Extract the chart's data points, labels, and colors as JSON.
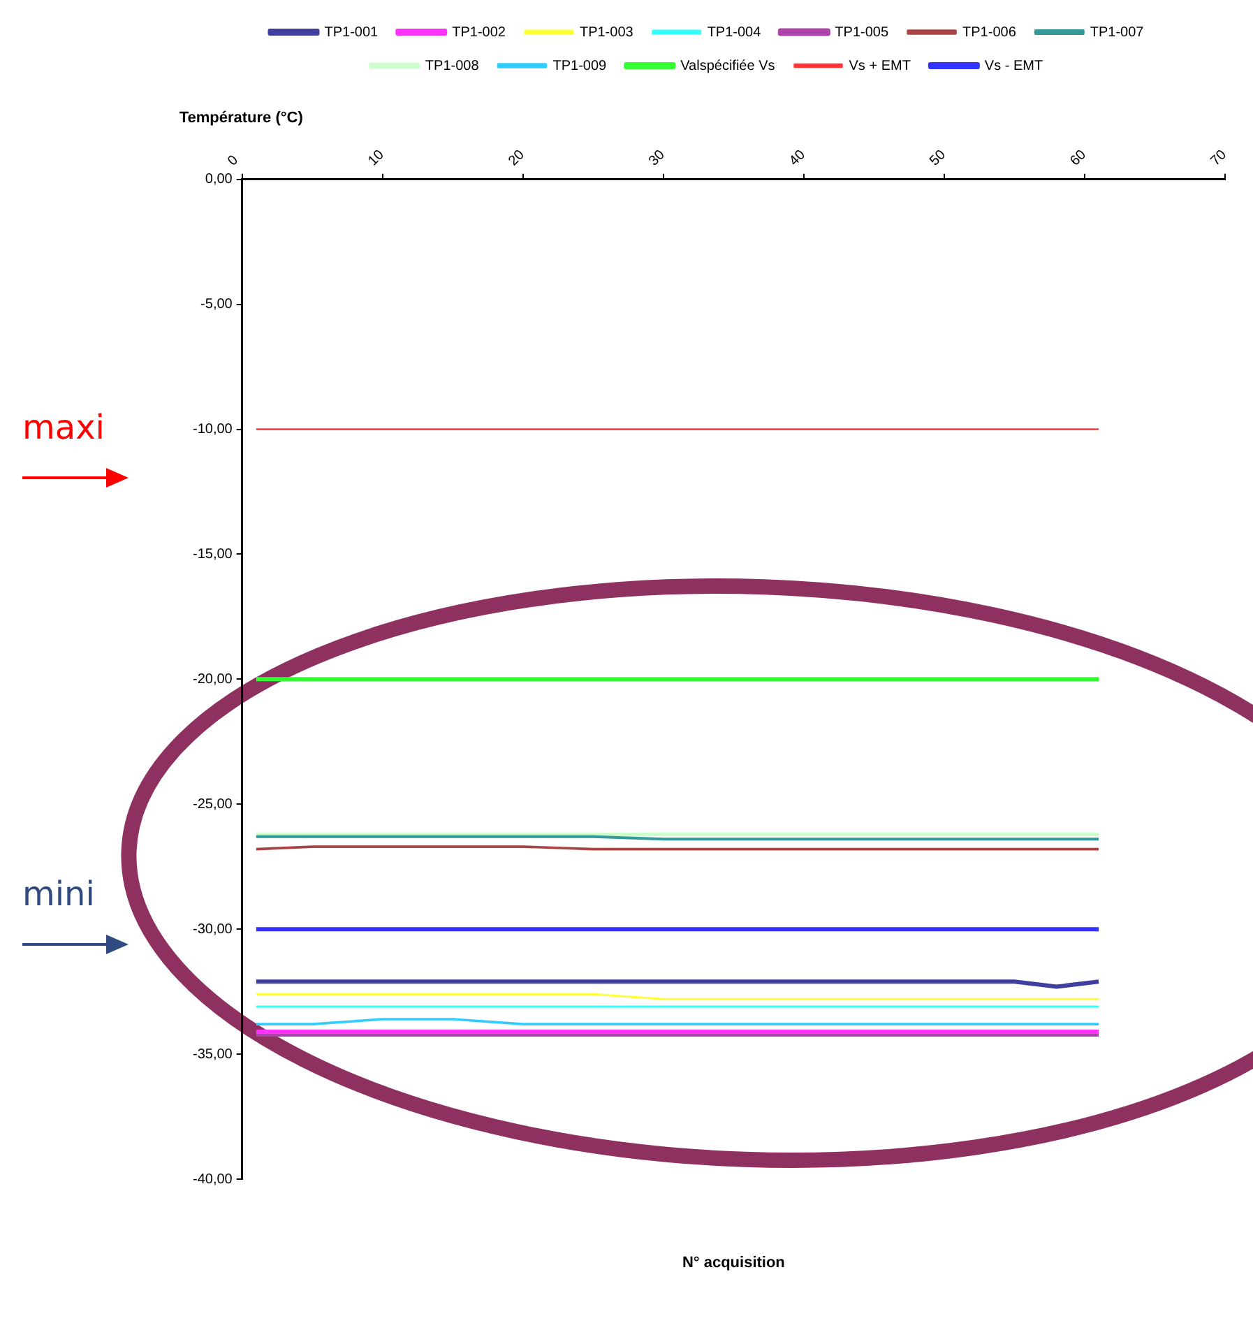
{
  "chart_data": {
    "type": "line",
    "ylabel": "Température (°C)",
    "xlabel": "N° acquisition",
    "x": [
      1,
      5,
      10,
      15,
      20,
      25,
      30,
      35,
      40,
      45,
      50,
      55,
      58,
      61
    ],
    "series": [
      {
        "name": "TP1-001",
        "color": "#3f3f9f",
        "values": [
          -32.1,
          -32.1,
          -32.1,
          -32.1,
          -32.1,
          -32.1,
          -32.1,
          -32.1,
          -32.1,
          -32.1,
          -32.1,
          -32.1,
          -32.3,
          -32.1
        ]
      },
      {
        "name": "TP1-002",
        "color": "#ff33ff",
        "values": [
          -34.1,
          -34.1,
          -34.1,
          -34.1,
          -34.1,
          -34.1,
          -34.1,
          -34.1,
          -34.1,
          -34.1,
          -34.1,
          -34.1,
          -34.1,
          -34.1
        ]
      },
      {
        "name": "TP1-003",
        "color": "#ffff33",
        "values": [
          -32.6,
          -32.6,
          -32.6,
          -32.6,
          -32.6,
          -32.6,
          -32.8,
          -32.8,
          -32.8,
          -32.8,
          -32.8,
          -32.8,
          -32.8,
          -32.8
        ]
      },
      {
        "name": "TP1-004",
        "color": "#33ffff",
        "values": [
          -33.1,
          -33.1,
          -33.1,
          -33.1,
          -33.1,
          -33.1,
          -33.1,
          -33.1,
          -33.1,
          -33.1,
          -33.1,
          -33.1,
          -33.1,
          -33.1
        ]
      },
      {
        "name": "TP1-005",
        "color": "#aa44aa",
        "values": [
          -34.2,
          -34.2,
          -34.2,
          -34.2,
          -34.2,
          -34.2,
          -34.2,
          -34.2,
          -34.2,
          -34.2,
          -34.2,
          -34.2,
          -34.2,
          -34.2
        ]
      },
      {
        "name": "TP1-006",
        "color": "#aa4444",
        "values": [
          -26.8,
          -26.7,
          -26.7,
          -26.7,
          -26.7,
          -26.8,
          -26.8,
          -26.8,
          -26.8,
          -26.8,
          -26.8,
          -26.8,
          -26.8,
          -26.8
        ]
      },
      {
        "name": "TP1-007",
        "color": "#339999",
        "values": [
          -26.3,
          -26.3,
          -26.3,
          -26.3,
          -26.3,
          -26.3,
          -26.4,
          -26.4,
          -26.4,
          -26.4,
          -26.4,
          -26.4,
          -26.4,
          -26.4
        ]
      },
      {
        "name": "TP1-008",
        "color": "#ccffcc",
        "values": [
          -26.2,
          -26.2,
          -26.2,
          -26.2,
          -26.2,
          -26.2,
          -26.2,
          -26.2,
          -26.2,
          -26.2,
          -26.2,
          -26.2,
          -26.2,
          -26.2
        ]
      },
      {
        "name": "TP1-009",
        "color": "#33ccff",
        "values": [
          -33.8,
          -33.8,
          -33.6,
          -33.6,
          -33.8,
          -33.8,
          -33.8,
          -33.8,
          -33.8,
          -33.8,
          -33.8,
          -33.8,
          -33.8,
          -33.8
        ]
      },
      {
        "name": "Valspécifiée Vs",
        "color": "#33ff33",
        "values": [
          -20,
          -20,
          -20,
          -20,
          -20,
          -20,
          -20,
          -20,
          -20,
          -20,
          -20,
          -20,
          -20,
          -20
        ]
      },
      {
        "name": "Vs + EMT",
        "color": "#ff3333",
        "values": [
          -10,
          -10,
          -10,
          -10,
          -10,
          -10,
          -10,
          -10,
          -10,
          -10,
          -10,
          -10,
          -10,
          -10
        ]
      },
      {
        "name": "Vs - EMT",
        "color": "#3333ff",
        "values": [
          -30,
          -30,
          -30,
          -30,
          -30,
          -30,
          -30,
          -30,
          -30,
          -30,
          -30,
          -30,
          -30,
          -30
        ]
      }
    ],
    "xlim": [
      0,
      70
    ],
    "xticks": [
      0,
      10,
      20,
      30,
      40,
      50,
      60,
      70
    ],
    "ylim": [
      -40,
      0
    ],
    "yticks": [
      {
        "value": 0,
        "label": "0,00"
      },
      {
        "value": -5,
        "label": "-5,00"
      },
      {
        "value": -10,
        "label": "-10,00"
      },
      {
        "value": -15,
        "label": "-15,00"
      },
      {
        "value": -20,
        "label": "-20,00"
      },
      {
        "value": -25,
        "label": "-25,00"
      },
      {
        "value": -30,
        "label": "-30,00"
      },
      {
        "value": -35,
        "label": "-35,00"
      },
      {
        "value": -40,
        "label": "-40,00"
      }
    ],
    "grid": false,
    "legend": "top",
    "marker": "none",
    "line_style": "solid",
    "annotations": [
      "maxi",
      "mini"
    ]
  }
}
